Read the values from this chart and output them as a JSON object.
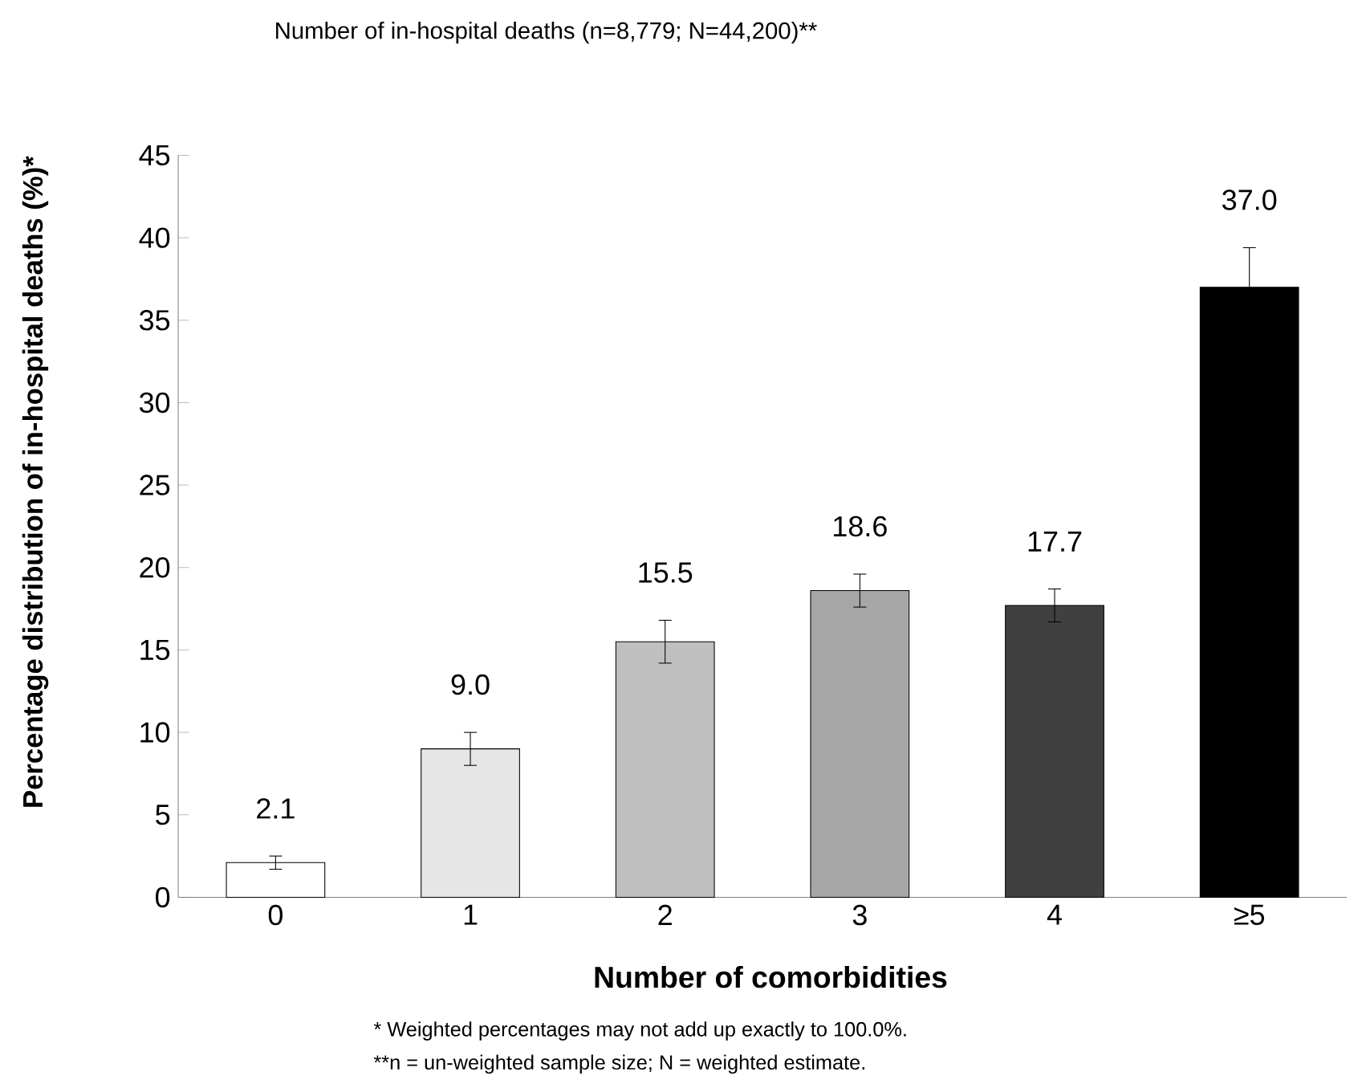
{
  "chart_data": {
    "type": "bar",
    "title": "Number of in-hospital deaths (n=8,779; N=44,200)**",
    "xlabel": "Number of comorbidities",
    "ylabel": "Percentage distribution of in-hospital deaths (%)*",
    "categories": [
      "0",
      "1",
      "2",
      "3",
      "4",
      "≥5"
    ],
    "values": [
      2.1,
      9.0,
      15.5,
      18.6,
      17.7,
      37.0
    ],
    "errors": [
      0.4,
      1.0,
      1.3,
      1.0,
      1.0,
      2.4
    ],
    "colors": [
      "#ffffff",
      "#e6e6e6",
      "#bfbfbf",
      "#a6a6a6",
      "#404040",
      "#000000"
    ],
    "ylim": [
      0,
      45
    ],
    "yticks": [
      0,
      5,
      10,
      15,
      20,
      25,
      30,
      35,
      40,
      45
    ],
    "value_labels": [
      "2.1",
      "9.0",
      "15.5",
      "18.6",
      "17.7",
      "37.0"
    ],
    "grid": false,
    "annotations": [
      "*  Weighted percentages may not add up exactly to 100.0%.",
      "**n = un-weighted sample size; N = weighted estimate."
    ]
  }
}
